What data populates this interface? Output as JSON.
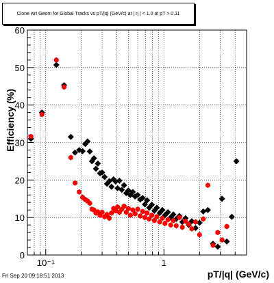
{
  "footer": {
    "timestamp": "Fri Sep 20 09:18:51 2013"
  },
  "chart_data": {
    "type": "scatter",
    "title": "Clone wrt Geom for Global Tracks vs pT/|q| (GeV/c) at |  η | < 1.0 at pT > 0.11",
    "xlabel": "pT/|q| (GeV/c)",
    "ylabel": "Efficiency (%)",
    "xscale": "log",
    "xlim": [
      0.07,
      5.0
    ],
    "ylim": [
      0,
      60
    ],
    "xticks": [
      {
        "value": 0.1,
        "label": "10⁻¹"
      },
      {
        "value": 1,
        "label": "1"
      }
    ],
    "yticks": [
      0,
      10,
      20,
      30,
      40,
      50,
      60
    ],
    "grid": true,
    "colors": {
      "series_black": "#000000",
      "series_red": "#ff0000"
    },
    "series": [
      {
        "color": "#000000",
        "marker": "diamond",
        "points": [
          [
            0.075,
            31.0
          ],
          [
            0.093,
            38.0
          ],
          [
            0.123,
            50.7
          ],
          [
            0.143,
            45.3
          ],
          [
            0.163,
            31.5
          ],
          [
            0.177,
            27.3
          ],
          [
            0.192,
            28.0
          ],
          [
            0.205,
            27.7
          ],
          [
            0.216,
            29.6
          ],
          [
            0.226,
            30.3
          ],
          [
            0.236,
            27.6
          ],
          [
            0.246,
            25.0
          ],
          [
            0.256,
            25.8
          ],
          [
            0.266,
            23.0
          ],
          [
            0.276,
            24.4
          ],
          [
            0.288,
            21.8
          ],
          [
            0.3,
            22.0
          ],
          [
            0.315,
            20.8
          ],
          [
            0.33,
            19.0
          ],
          [
            0.345,
            19.7
          ],
          [
            0.36,
            18.2
          ],
          [
            0.375,
            20.2
          ],
          [
            0.39,
            19.6
          ],
          [
            0.405,
            17.8
          ],
          [
            0.42,
            19.8
          ],
          [
            0.44,
            17.4
          ],
          [
            0.46,
            18.6
          ],
          [
            0.48,
            16.5
          ],
          [
            0.5,
            17.2
          ],
          [
            0.52,
            16.0
          ],
          [
            0.545,
            16.8
          ],
          [
            0.57,
            15.6
          ],
          [
            0.6,
            16.0
          ],
          [
            0.63,
            14.8
          ],
          [
            0.66,
            15.2
          ],
          [
            0.69,
            13.5
          ],
          [
            0.72,
            14.6
          ],
          [
            0.75,
            12.6
          ],
          [
            0.79,
            13.4
          ],
          [
            0.83,
            11.8
          ],
          [
            0.87,
            12.6
          ],
          [
            0.92,
            11.2
          ],
          [
            0.97,
            12.0
          ],
          [
            1.02,
            10.6
          ],
          [
            1.08,
            11.4
          ],
          [
            1.14,
            10.0
          ],
          [
            1.2,
            10.8
          ],
          [
            1.27,
            9.6
          ],
          [
            1.35,
            10.4
          ],
          [
            1.43,
            8.8
          ],
          [
            1.52,
            9.8
          ],
          [
            1.62,
            8.0
          ],
          [
            1.72,
            9.0
          ],
          [
            1.85,
            7.2
          ],
          [
            2.0,
            8.6
          ],
          [
            2.15,
            11.6
          ],
          [
            2.35,
            12.0
          ],
          [
            2.6,
            3.0
          ],
          [
            2.85,
            2.2
          ],
          [
            3.1,
            15.0
          ],
          [
            3.4,
            3.6
          ],
          [
            3.75,
            10.2
          ],
          [
            4.1,
            25.0
          ]
        ]
      },
      {
        "color": "#ff0000",
        "marker": "circle",
        "points": [
          [
            0.075,
            31.6
          ],
          [
            0.093,
            37.5
          ],
          [
            0.123,
            52.0
          ],
          [
            0.143,
            44.8
          ],
          [
            0.163,
            26.0
          ],
          [
            0.177,
            19.2
          ],
          [
            0.192,
            16.8
          ],
          [
            0.205,
            15.4
          ],
          [
            0.216,
            14.8
          ],
          [
            0.226,
            14.4
          ],
          [
            0.236,
            13.8
          ],
          [
            0.246,
            12.2
          ],
          [
            0.256,
            12.0
          ],
          [
            0.266,
            11.2
          ],
          [
            0.276,
            11.5
          ],
          [
            0.288,
            10.6
          ],
          [
            0.3,
            11.4
          ],
          [
            0.315,
            10.2
          ],
          [
            0.33,
            10.8
          ],
          [
            0.345,
            9.8
          ],
          [
            0.36,
            11.2
          ],
          [
            0.375,
            12.4
          ],
          [
            0.39,
            11.8
          ],
          [
            0.405,
            12.8
          ],
          [
            0.42,
            11.4
          ],
          [
            0.44,
            12.2
          ],
          [
            0.46,
            13.0
          ],
          [
            0.48,
            11.4
          ],
          [
            0.5,
            12.4
          ],
          [
            0.52,
            10.6
          ],
          [
            0.545,
            12.0
          ],
          [
            0.57,
            11.0
          ],
          [
            0.6,
            12.2
          ],
          [
            0.63,
            10.4
          ],
          [
            0.66,
            11.6
          ],
          [
            0.69,
            10.0
          ],
          [
            0.72,
            11.2
          ],
          [
            0.75,
            9.6
          ],
          [
            0.79,
            10.6
          ],
          [
            0.83,
            9.2
          ],
          [
            0.87,
            10.2
          ],
          [
            0.92,
            8.8
          ],
          [
            0.97,
            9.8
          ],
          [
            1.02,
            8.4
          ],
          [
            1.08,
            9.4
          ],
          [
            1.14,
            8.0
          ],
          [
            1.2,
            9.2
          ],
          [
            1.27,
            7.8
          ],
          [
            1.35,
            10.0
          ],
          [
            1.43,
            7.4
          ],
          [
            1.52,
            9.0
          ],
          [
            1.62,
            8.2
          ],
          [
            1.72,
            7.0
          ],
          [
            1.85,
            8.8
          ],
          [
            2.0,
            5.4
          ],
          [
            2.15,
            9.6
          ],
          [
            2.35,
            18.6
          ],
          [
            2.6,
            2.6
          ],
          [
            2.85,
            6.0
          ],
          [
            3.1,
            4.0
          ],
          [
            3.4,
            7.6
          ]
        ]
      }
    ]
  }
}
